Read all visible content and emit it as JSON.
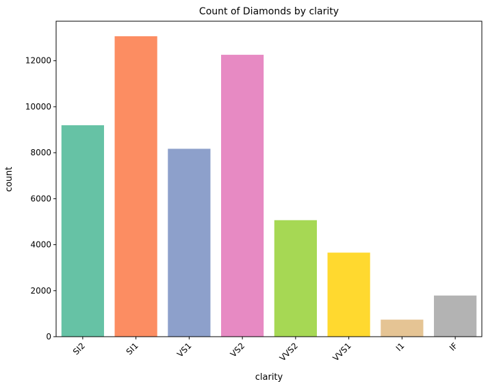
{
  "chart_data": {
    "type": "bar",
    "title": "Count of Diamonds by clarity",
    "xlabel": "clarity",
    "ylabel": "count",
    "categories": [
      "SI2",
      "SI1",
      "VS1",
      "VS2",
      "VVS2",
      "VVS1",
      "I1",
      "IF"
    ],
    "values": [
      9194,
      13065,
      8171,
      12258,
      5066,
      3655,
      741,
      1790
    ],
    "yticks": [
      0,
      2000,
      4000,
      6000,
      8000,
      10000,
      12000
    ],
    "ylim": [
      0,
      13718
    ],
    "grid": false,
    "legend": "none",
    "colors": [
      "#66c2a5",
      "#fc8d62",
      "#8da0cb",
      "#e78ac3",
      "#a6d854",
      "#ffd92f",
      "#e5c494",
      "#b3b3b3"
    ],
    "x_tick_rotation": "45-degree"
  }
}
